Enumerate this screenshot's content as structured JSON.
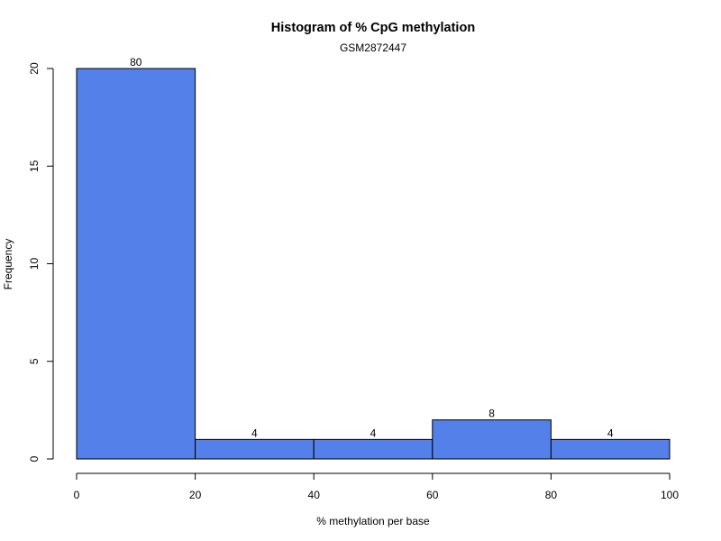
{
  "chart_data": {
    "type": "bar",
    "title": "Histogram of % CpG methylation",
    "subtitle": "GSM2872447",
    "xlabel": "% methylation per base",
    "ylabel": "Frequency",
    "bar_color": "#5380e9",
    "bins": [
      {
        "start": 0,
        "end": 20,
        "frequency": 20,
        "label": "80"
      },
      {
        "start": 20,
        "end": 40,
        "frequency": 1,
        "label": "4"
      },
      {
        "start": 40,
        "end": 60,
        "frequency": 1,
        "label": "4"
      },
      {
        "start": 60,
        "end": 80,
        "frequency": 2,
        "label": "8"
      },
      {
        "start": 80,
        "end": 100,
        "frequency": 1,
        "label": "4"
      }
    ],
    "xlim": [
      0,
      100
    ],
    "ylim": [
      0,
      20
    ],
    "x_ticks": [
      "0",
      "20",
      "40",
      "60",
      "80",
      "100"
    ],
    "y_ticks": [
      "0",
      "5",
      "10",
      "15",
      "20"
    ],
    "grid": false,
    "legend": "none"
  }
}
